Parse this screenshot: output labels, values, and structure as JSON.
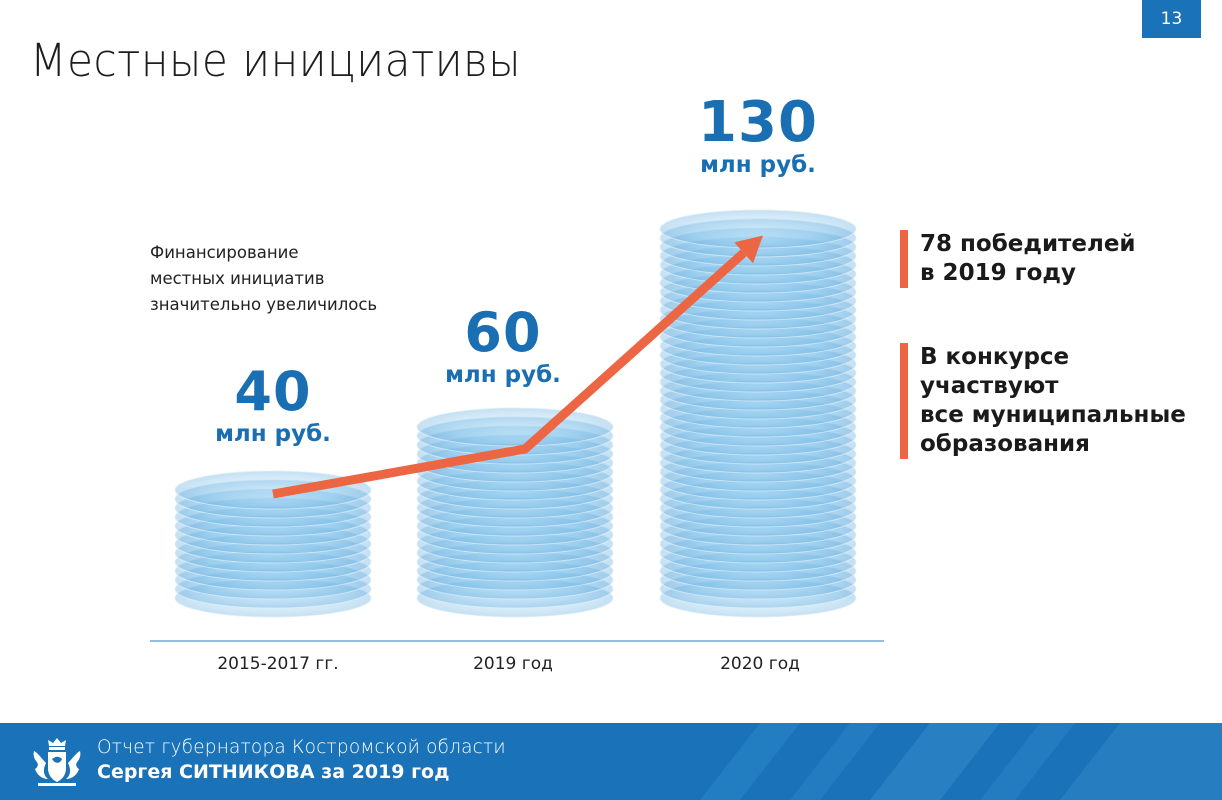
{
  "page": {
    "number": "13",
    "title": "Местные инициативы"
  },
  "note": {
    "lines": [
      "Финансирование",
      "местных инициатив",
      "значительно увеличилось"
    ]
  },
  "chart_data": {
    "type": "bar",
    "categories": [
      "2015-2017 гг.",
      "2019 год",
      "2020 год"
    ],
    "values": [
      40,
      60,
      130
    ],
    "value_labels": [
      "40",
      "60",
      "130"
    ],
    "unit": "млн руб.",
    "trend_line": true,
    "colors": {
      "bar": "#5aaee0",
      "value_text": "#1a6eb2",
      "trend": "#ec6644",
      "axis": "#2a7cc0"
    }
  },
  "facts": [
    {
      "lines": [
        "78 победителей",
        "в 2019 году"
      ]
    },
    {
      "lines": [
        "В конкурсе",
        "участвуют",
        "все муниципальные",
        "образования"
      ]
    }
  ],
  "footer": {
    "line1": "Отчет губернатора Костромской области",
    "line2": "Сергея СИТНИКОВА за 2019 год"
  },
  "colors": {
    "brand_blue": "#1a72b8",
    "accent_orange": "#ec6644"
  }
}
